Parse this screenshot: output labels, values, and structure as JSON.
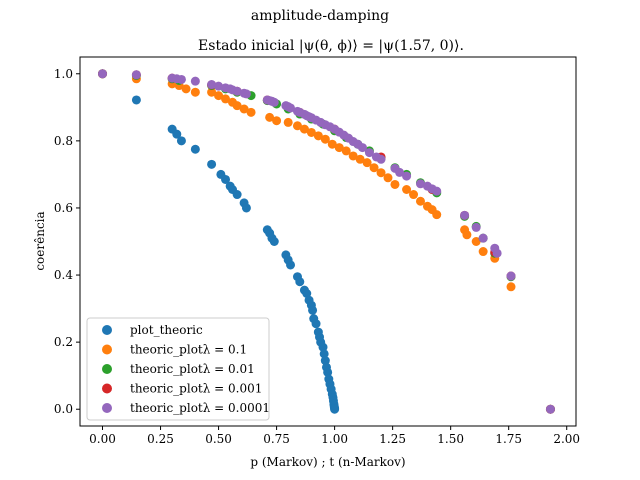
{
  "chart_data": {
    "type": "scatter",
    "suptitle": "amplitude-damping",
    "title": "Estado inicial |ψ(θ, ϕ)⟩ = |ψ(1.57, 0)⟩.",
    "xlabel": "p (Markov) ; t (n-Markov)",
    "ylabel": "coerência",
    "xlim": [
      -0.097,
      2.04
    ],
    "ylim": [
      -0.05,
      1.05
    ],
    "xticks": [
      0.0,
      0.25,
      0.5,
      0.75,
      1.0,
      1.25,
      1.5,
      1.75,
      2.0
    ],
    "xtick_labels": [
      "0.00",
      "0.25",
      "0.50",
      "0.75",
      "1.00",
      "1.25",
      "1.50",
      "1.75",
      "2.00"
    ],
    "yticks": [
      0.0,
      0.2,
      0.4,
      0.6,
      0.8,
      1.0
    ],
    "ytick_labels": [
      "0.0",
      "0.2",
      "0.4",
      "0.6",
      "0.8",
      "1.0"
    ],
    "grid": false,
    "legend_position": "lower-left",
    "series": [
      {
        "name": "plot_theoric",
        "color": "#1f77b4",
        "x": [
          0.0,
          0.146,
          0.3,
          0.32,
          0.34,
          0.4,
          0.47,
          0.51,
          0.53,
          0.55,
          0.56,
          0.58,
          0.61,
          0.62,
          0.71,
          0.72,
          0.73,
          0.74,
          0.79,
          0.8,
          0.81,
          0.84,
          0.85,
          0.87,
          0.88,
          0.89,
          0.9,
          0.905,
          0.91,
          0.92,
          0.93,
          0.935,
          0.94,
          0.95,
          0.955,
          0.96,
          0.965,
          0.97,
          0.975,
          0.98,
          0.985,
          0.99,
          0.993,
          0.995,
          0.997,
          0.998,
          0.999,
          1.0,
          1.0
        ],
        "y": [
          1.0,
          0.922,
          0.835,
          0.82,
          0.8,
          0.775,
          0.73,
          0.7,
          0.685,
          0.665,
          0.655,
          0.64,
          0.615,
          0.6,
          0.535,
          0.525,
          0.51,
          0.5,
          0.46,
          0.445,
          0.43,
          0.395,
          0.38,
          0.355,
          0.345,
          0.325,
          0.31,
          0.295,
          0.27,
          0.255,
          0.23,
          0.215,
          0.2,
          0.185,
          0.165,
          0.145,
          0.125,
          0.11,
          0.09,
          0.075,
          0.06,
          0.045,
          0.035,
          0.025,
          0.015,
          0.01,
          0.005,
          0.002,
          0.0
        ]
      },
      {
        "name": "theoric_plotλ = 0.1",
        "color": "#ff7f0e",
        "x": [
          0.0,
          0.146,
          0.3,
          0.33,
          0.36,
          0.4,
          0.47,
          0.5,
          0.53,
          0.56,
          0.58,
          0.61,
          0.64,
          0.72,
          0.75,
          0.8,
          0.84,
          0.87,
          0.9,
          0.93,
          0.96,
          0.99,
          1.02,
          1.05,
          1.08,
          1.11,
          1.14,
          1.17,
          1.2,
          1.23,
          1.26,
          1.31,
          1.34,
          1.37,
          1.4,
          1.42,
          1.44,
          1.56,
          1.57,
          1.61,
          1.64,
          1.69,
          1.76,
          1.93
        ],
        "y": [
          1.0,
          0.985,
          0.97,
          0.965,
          0.955,
          0.945,
          0.945,
          0.935,
          0.925,
          0.915,
          0.905,
          0.895,
          0.885,
          0.87,
          0.86,
          0.855,
          0.845,
          0.835,
          0.825,
          0.815,
          0.805,
          0.79,
          0.78,
          0.77,
          0.755,
          0.745,
          0.735,
          0.72,
          0.705,
          0.69,
          0.67,
          0.655,
          0.64,
          0.62,
          0.605,
          0.595,
          0.58,
          0.535,
          0.52,
          0.5,
          0.47,
          0.45,
          0.365,
          0.0
        ]
      },
      {
        "name": "theoric_plotλ = 0.01",
        "color": "#2ca02c",
        "x": [
          0.0,
          0.146,
          0.3,
          0.33,
          0.47,
          0.53,
          0.58,
          0.64,
          0.71,
          0.75,
          0.8,
          0.85,
          0.9,
          0.95,
          1.0,
          1.05,
          1.1,
          1.15,
          1.2,
          1.26,
          1.31,
          1.37,
          1.42,
          1.44,
          1.56,
          1.61,
          1.64,
          1.69,
          1.76,
          1.93
        ],
        "y": [
          1.0,
          0.995,
          0.985,
          0.98,
          0.965,
          0.955,
          0.945,
          0.935,
          0.92,
          0.91,
          0.895,
          0.88,
          0.865,
          0.85,
          0.83,
          0.81,
          0.79,
          0.77,
          0.75,
          0.72,
          0.7,
          0.675,
          0.655,
          0.645,
          0.575,
          0.545,
          0.51,
          0.465,
          0.395,
          0.0
        ]
      },
      {
        "name": "theoric_plotλ = 0.001",
        "color": "#d62728",
        "x": [
          0.0,
          0.146,
          0.3,
          0.47,
          0.58,
          0.71,
          0.85,
          1.0,
          1.2,
          1.42,
          1.56,
          1.69,
          1.76,
          1.93
        ],
        "y": [
          1.0,
          0.997,
          0.987,
          0.967,
          0.948,
          0.922,
          0.885,
          0.835,
          0.752,
          0.655,
          0.578,
          0.468,
          0.397,
          0.0
        ]
      },
      {
        "name": "theoric_plotλ = 0.0001",
        "color": "#9467bd",
        "x": [
          0.0,
          0.146,
          0.3,
          0.32,
          0.34,
          0.4,
          0.47,
          0.5,
          0.53,
          0.55,
          0.56,
          0.58,
          0.61,
          0.62,
          0.71,
          0.72,
          0.73,
          0.74,
          0.79,
          0.8,
          0.81,
          0.84,
          0.85,
          0.87,
          0.88,
          0.89,
          0.9,
          0.92,
          0.94,
          0.96,
          0.98,
          1.0,
          1.02,
          1.04,
          1.06,
          1.08,
          1.1,
          1.12,
          1.15,
          1.18,
          1.2,
          1.26,
          1.28,
          1.31,
          1.37,
          1.4,
          1.42,
          1.44,
          1.56,
          1.61,
          1.64,
          1.69,
          1.7,
          1.76,
          1.93
        ],
        "y": [
          1.0,
          0.997,
          0.987,
          0.985,
          0.983,
          0.978,
          0.968,
          0.963,
          0.958,
          0.955,
          0.952,
          0.948,
          0.942,
          0.94,
          0.922,
          0.92,
          0.918,
          0.915,
          0.905,
          0.902,
          0.898,
          0.888,
          0.885,
          0.879,
          0.875,
          0.872,
          0.869,
          0.862,
          0.855,
          0.848,
          0.842,
          0.835,
          0.826,
          0.817,
          0.808,
          0.798,
          0.79,
          0.78,
          0.765,
          0.752,
          0.745,
          0.718,
          0.706,
          0.695,
          0.672,
          0.665,
          0.657,
          0.65,
          0.578,
          0.542,
          0.51,
          0.48,
          0.465,
          0.397,
          0.0
        ]
      }
    ]
  }
}
